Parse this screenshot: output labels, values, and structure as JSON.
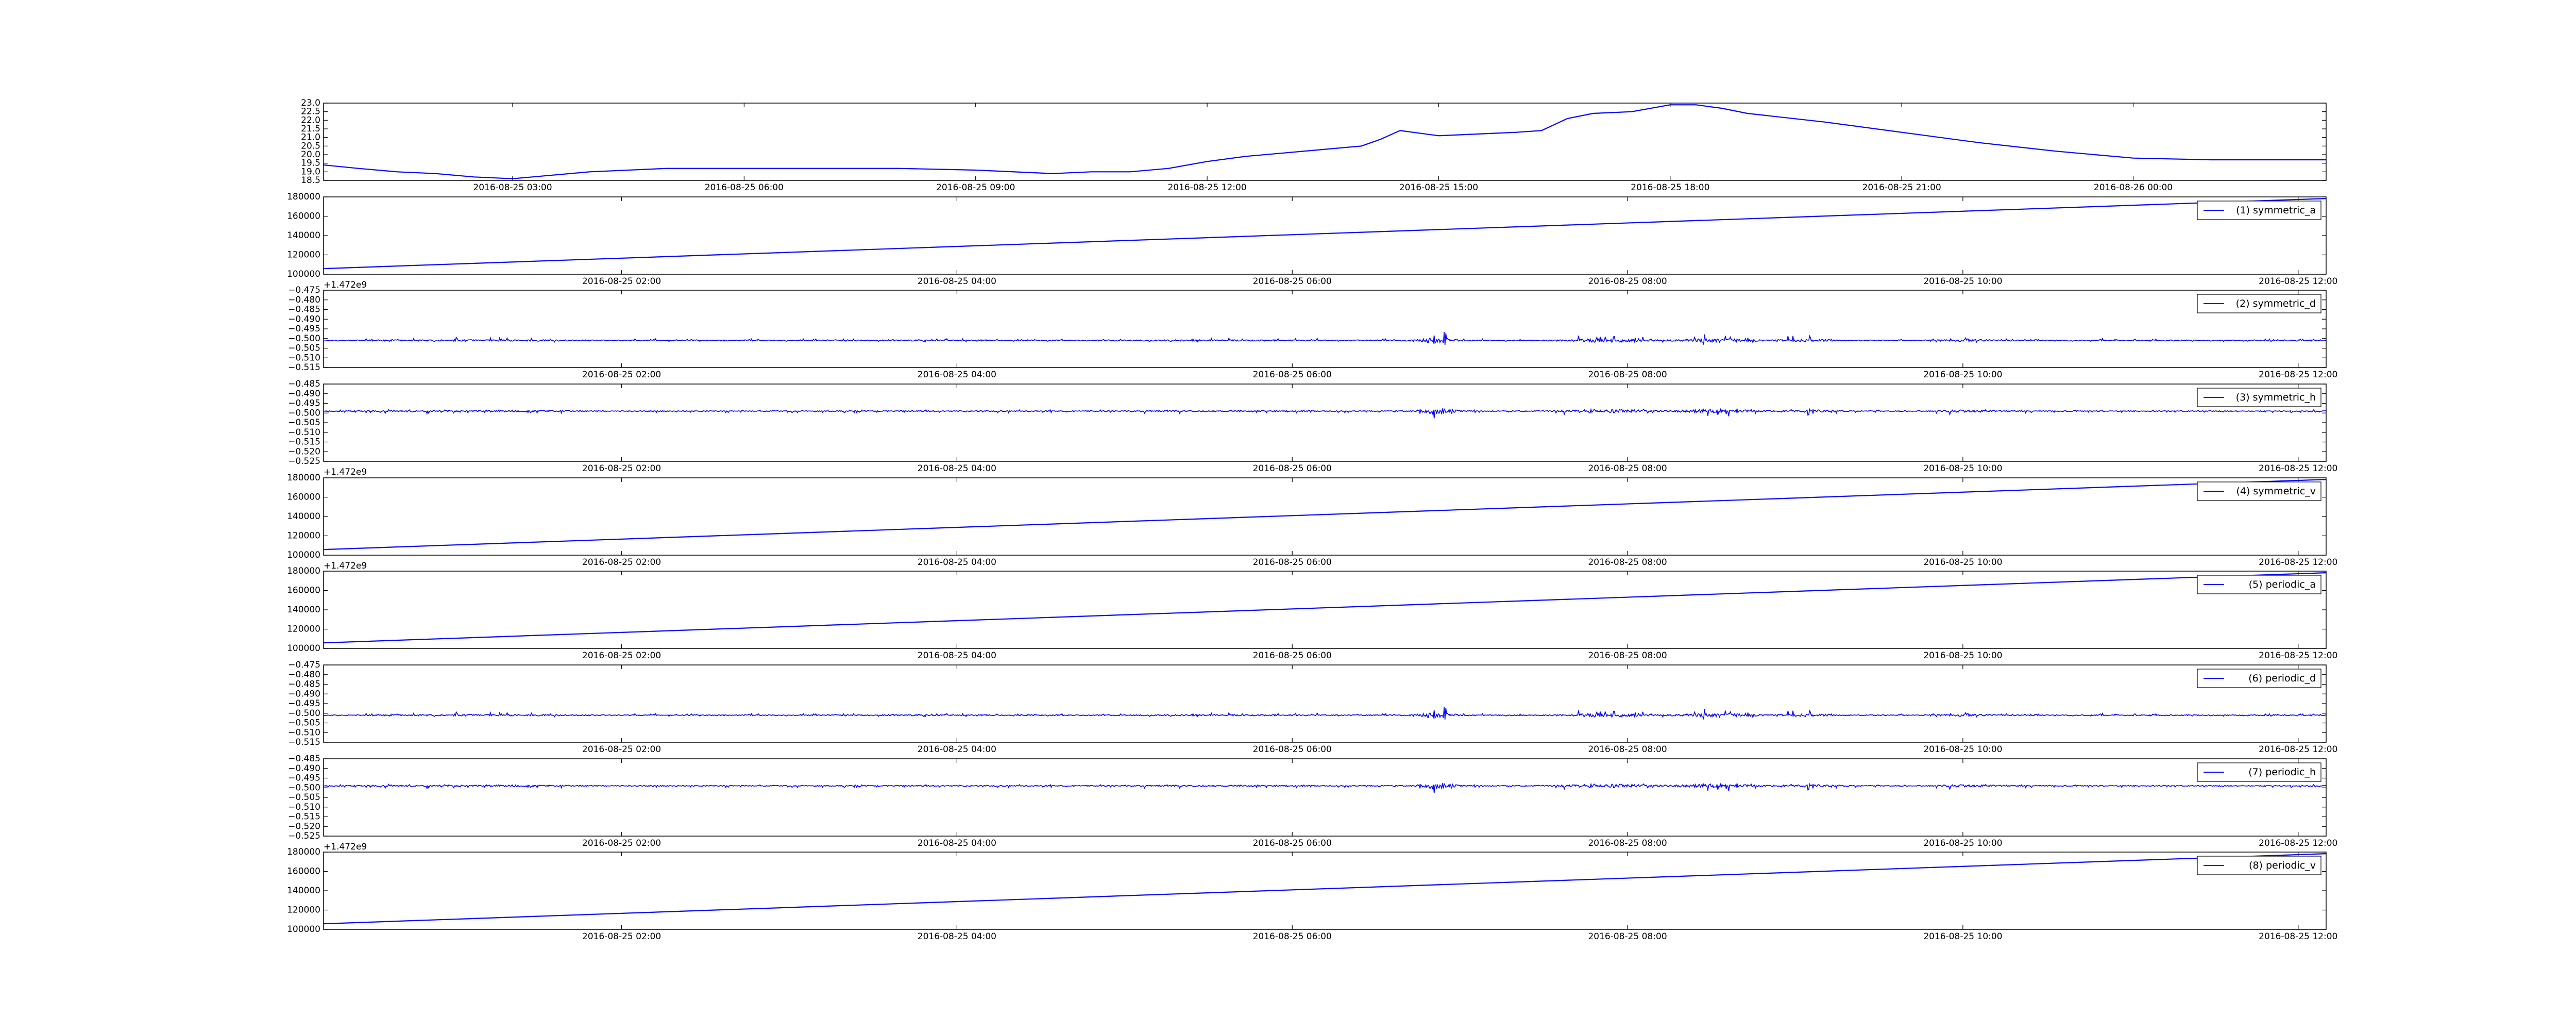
{
  "chart_data": [
    {
      "type": "line",
      "id": "temperature",
      "xaxis": "time",
      "xlim": [
        "2016-08-25 00:33",
        "2016-08-26 02:30"
      ],
      "ylim": [
        18.5,
        23.0
      ],
      "yticks": [
        "18.5",
        "19.0",
        "19.5",
        "20.0",
        "20.5",
        "21.0",
        "21.5",
        "22.0",
        "22.5",
        "23.0"
      ],
      "xticks": [
        {
          "t": "2016-08-25 03:00",
          "label": "2016-08-25 03:00"
        },
        {
          "t": "2016-08-25 06:00",
          "label": "2016-08-25 06:00"
        },
        {
          "t": "2016-08-25 09:00",
          "label": "2016-08-25 09:00"
        },
        {
          "t": "2016-08-25 12:00",
          "label": "2016-08-25 12:00"
        },
        {
          "t": "2016-08-25 15:00",
          "label": "2016-08-25 15:00"
        },
        {
          "t": "2016-08-25 18:00",
          "label": "2016-08-25 18:00"
        },
        {
          "t": "2016-08-25 21:00",
          "label": "2016-08-25 21:00"
        },
        {
          "t": "2016-08-26 00:00",
          "label": "2016-08-26 00:00"
        }
      ],
      "offset_text": "",
      "legend": "",
      "color": "#0000ff",
      "series": [
        {
          "x": [
            "2016-08-25 00:33",
            "2016-08-25 01:00",
            "2016-08-25 01:30",
            "2016-08-25 02:00",
            "2016-08-25 02:30",
            "2016-08-25 03:00",
            "2016-08-25 04:00",
            "2016-08-25 05:00",
            "2016-08-25 06:00",
            "2016-08-25 07:00",
            "2016-08-25 08:00",
            "2016-08-25 09:00",
            "2016-08-25 10:00",
            "2016-08-25 10:30",
            "2016-08-25 11:00",
            "2016-08-25 11:30",
            "2016-08-25 12:00",
            "2016-08-25 12:30",
            "2016-08-25 13:00",
            "2016-08-25 13:30",
            "2016-08-25 14:00",
            "2016-08-25 14:15",
            "2016-08-25 14:30",
            "2016-08-25 15:00",
            "2016-08-25 15:30",
            "2016-08-25 16:00",
            "2016-08-25 16:20",
            "2016-08-25 16:40",
            "2016-08-25 17:00",
            "2016-08-25 17:30",
            "2016-08-25 18:00",
            "2016-08-25 18:20",
            "2016-08-25 18:40",
            "2016-08-25 19:00",
            "2016-08-25 20:00",
            "2016-08-25 21:00",
            "2016-08-25 22:00",
            "2016-08-25 23:00",
            "2016-08-26 00:00",
            "2016-08-26 01:00",
            "2016-08-26 02:30"
          ],
          "y": [
            19.4,
            19.2,
            19.0,
            18.9,
            18.7,
            18.6,
            19.0,
            19.2,
            19.2,
            19.2,
            19.2,
            19.1,
            18.9,
            19.0,
            19.0,
            19.2,
            19.6,
            19.9,
            20.1,
            20.3,
            20.5,
            20.9,
            21.4,
            21.1,
            21.2,
            21.3,
            21.4,
            22.1,
            22.4,
            22.5,
            22.9,
            22.9,
            22.7,
            22.4,
            21.9,
            21.3,
            20.7,
            20.2,
            19.8,
            19.7,
            19.7
          ]
        }
      ]
    },
    {
      "type": "line",
      "id": "symmetric_a",
      "xaxis": "epoch",
      "xlim": [
        1472084000,
        1472127000
      ],
      "ylim": [
        92000,
        188000
      ],
      "yticks": [
        "100000",
        "120000",
        "140000",
        "160000",
        "180000"
      ],
      "offset_text": "+1.472e9",
      "legend": "(1) symmetric_a",
      "color": "#0000ff",
      "series": [
        {
          "kind": "linear",
          "x": [
            1472084000,
            1472127000
          ],
          "y": [
            99000,
            186000
          ]
        }
      ]
    },
    {
      "type": "line",
      "id": "symmetric_d",
      "xaxis": "epoch",
      "xlim": [
        1472084000,
        1472127000
      ],
      "ylim": [
        -0.515,
        -0.475
      ],
      "yticks": [
        "-0.515",
        "-0.510",
        "-0.505",
        "-0.500",
        "-0.495",
        "-0.490",
        "-0.485",
        "-0.480",
        "-0.475"
      ],
      "offset_text": "",
      "legend": "(2) symmetric_d",
      "color": "#0000ff",
      "series": [
        {
          "kind": "noise",
          "center": -0.501,
          "sign": 1,
          "seed": 11,
          "range": [
            -0.515,
            -0.475
          ]
        }
      ]
    },
    {
      "type": "line",
      "id": "symmetric_h",
      "xaxis": "epoch",
      "xlim": [
        1472084000,
        1472127000
      ],
      "ylim": [
        -0.525,
        -0.485
      ],
      "yticks": [
        "-0.525",
        "-0.520",
        "-0.515",
        "-0.510",
        "-0.505",
        "-0.500",
        "-0.495",
        "-0.490",
        "-0.485"
      ],
      "offset_text": "+1.472e9",
      "legend": "(3) symmetric_h",
      "color": "#0000ff",
      "series": [
        {
          "kind": "noise",
          "center": -0.499,
          "sign": -1,
          "seed": 23,
          "range": [
            -0.525,
            -0.485
          ]
        }
      ]
    },
    {
      "type": "line",
      "id": "symmetric_v",
      "xaxis": "epoch",
      "xlim": [
        1472084000,
        1472127000
      ],
      "ylim": [
        92000,
        188000
      ],
      "yticks": [
        "100000",
        "120000",
        "140000",
        "160000",
        "180000"
      ],
      "offset_text": "+1.472e9",
      "legend": "(4) symmetric_v",
      "color": "#0000ff",
      "series": [
        {
          "kind": "linear",
          "x": [
            1472084000,
            1472127000
          ],
          "y": [
            99000,
            186000
          ]
        }
      ]
    },
    {
      "type": "line",
      "id": "periodic_a",
      "xaxis": "epoch",
      "xlim": [
        1472084000,
        1472127000
      ],
      "ylim": [
        92000,
        188000
      ],
      "yticks": [
        "100000",
        "120000",
        "140000",
        "160000",
        "180000"
      ],
      "offset_text": "",
      "legend": "(5) periodic_a",
      "color": "#0000ff",
      "series": [
        {
          "kind": "linear",
          "x": [
            1472084000,
            1472127000
          ],
          "y": [
            99000,
            186000
          ]
        }
      ]
    },
    {
      "type": "line",
      "id": "periodic_d",
      "xaxis": "epoch",
      "xlim": [
        1472084000,
        1472127000
      ],
      "ylim": [
        -0.515,
        -0.475
      ],
      "yticks": [
        "-0.515",
        "-0.510",
        "-0.505",
        "-0.500",
        "-0.495",
        "-0.490",
        "-0.485",
        "-0.480",
        "-0.475"
      ],
      "offset_text": "",
      "legend": "(6) periodic_d",
      "color": "#0000ff",
      "series": [
        {
          "kind": "noise",
          "center": -0.501,
          "sign": 1,
          "seed": 11,
          "range": [
            -0.515,
            -0.475
          ]
        }
      ]
    },
    {
      "type": "line",
      "id": "periodic_h",
      "xaxis": "epoch",
      "xlim": [
        1472084000,
        1472127000
      ],
      "ylim": [
        -0.525,
        -0.485
      ],
      "yticks": [
        "-0.525",
        "-0.520",
        "-0.515",
        "-0.510",
        "-0.505",
        "-0.500",
        "-0.495",
        "-0.490",
        "-0.485"
      ],
      "offset_text": "+1.472e9",
      "legend": "(7) periodic_h",
      "color": "#0000ff",
      "series": [
        {
          "kind": "noise",
          "center": -0.499,
          "sign": -1,
          "seed": 23,
          "range": [
            -0.525,
            -0.485
          ]
        }
      ]
    },
    {
      "type": "line",
      "id": "periodic_v",
      "xaxis": "epoch",
      "xlim": [
        1472084000,
        1472127000
      ],
      "ylim": [
        92000,
        188000
      ],
      "yticks": [
        "100000",
        "120000",
        "140000",
        "160000",
        "180000"
      ],
      "offset_text": "",
      "legend": "(8) periodic_v",
      "color": "#0000ff",
      "series": [
        {
          "kind": "linear",
          "x": [
            1472084000,
            1472127000
          ],
          "y": [
            99000,
            186000
          ]
        }
      ]
    }
  ],
  "epoch_xticks": [
    {
      "t": 1472090400,
      "label": "2016-08-25 02:00"
    },
    {
      "t": 1472097600,
      "label": "2016-08-25 04:00"
    },
    {
      "t": 1472104800,
      "label": "2016-08-25 06:00"
    },
    {
      "t": 1472112000,
      "label": "2016-08-25 08:00"
    },
    {
      "t": 1472119200,
      "label": "2016-08-25 10:00"
    },
    {
      "t": 1472126400,
      "label": "2016-08-25 12:00"
    }
  ]
}
